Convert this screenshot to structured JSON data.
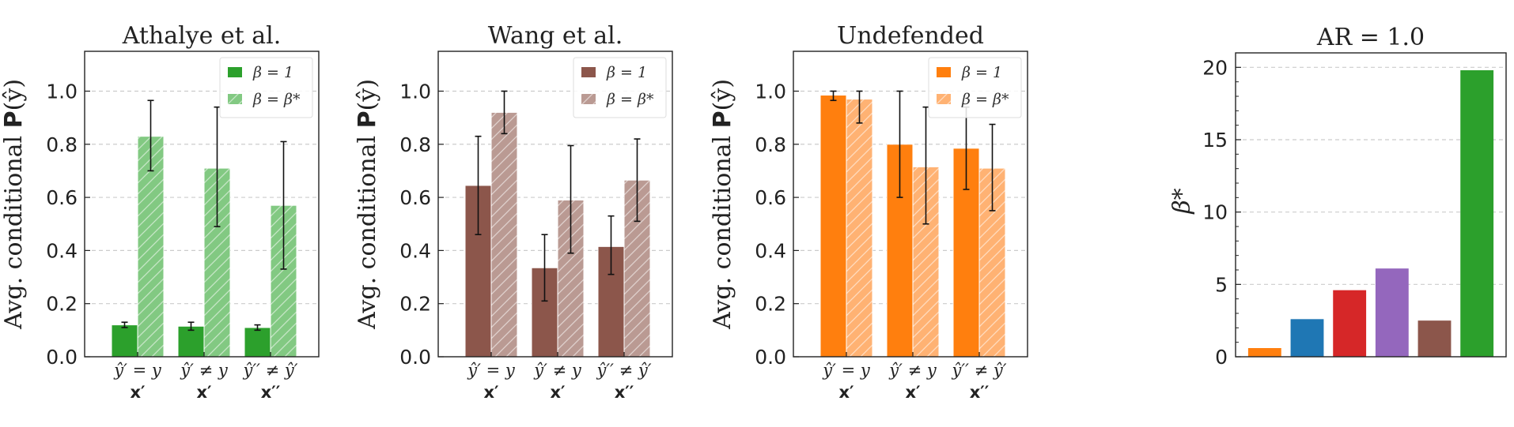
{
  "chart_data": [
    {
      "type": "bar",
      "title": "Athalye et al.",
      "ylabel": "Avg. conditional P(ŷ)",
      "ylim": [
        0,
        1.15
      ],
      "yticks": [
        "0.0",
        "0.2",
        "0.4",
        "0.6",
        "0.8",
        "1.0"
      ],
      "grid": "horizontal dashed",
      "legend_position": "top-right",
      "categories": [
        {
          "top": "ŷ′ = y",
          "bottom": "x′"
        },
        {
          "top": "ŷ′ ≠ y",
          "bottom": "x′"
        },
        {
          "top": "ŷ′′ ≠ ŷ′",
          "bottom": "x′′"
        }
      ],
      "series": [
        {
          "name": "β = 1",
          "color": "#2ca02c",
          "hatch": false,
          "values": [
            0.12,
            0.115,
            0.11
          ],
          "err_low": [
            0.11,
            0.1,
            0.1
          ],
          "err_high": [
            0.13,
            0.13,
            0.12
          ]
        },
        {
          "name": "β = β*",
          "color": "#82c982",
          "hatch": true,
          "values": [
            0.83,
            0.71,
            0.57
          ],
          "err_low": [
            0.7,
            0.49,
            0.33
          ],
          "err_high": [
            0.965,
            0.94,
            0.81
          ]
        }
      ]
    },
    {
      "type": "bar",
      "title": "Wang et al.",
      "ylabel": "Avg. conditional P(ŷ)",
      "ylim": [
        0,
        1.15
      ],
      "yticks": [
        "0.0",
        "0.2",
        "0.4",
        "0.6",
        "0.8",
        "1.0"
      ],
      "grid": "horizontal dashed",
      "legend_position": "top-right",
      "categories": [
        {
          "top": "ŷ′ = y",
          "bottom": "x′"
        },
        {
          "top": "ŷ′ ≠ y",
          "bottom": "x′"
        },
        {
          "top": "ŷ′′ ≠ ŷ′",
          "bottom": "x′′"
        }
      ],
      "series": [
        {
          "name": "β = 1",
          "color": "#8c564b",
          "hatch": false,
          "values": [
            0.645,
            0.335,
            0.415
          ],
          "err_low": [
            0.46,
            0.21,
            0.31
          ],
          "err_high": [
            0.83,
            0.46,
            0.53
          ]
        },
        {
          "name": "β = β*",
          "color": "#ba9a93",
          "hatch": true,
          "values": [
            0.92,
            0.59,
            0.665
          ],
          "err_low": [
            0.84,
            0.39,
            0.51
          ],
          "err_high": [
            1.0,
            0.795,
            0.82
          ]
        }
      ]
    },
    {
      "type": "bar",
      "title": "Undefended",
      "ylabel": "Avg. conditional P(ŷ)",
      "ylim": [
        0,
        1.15
      ],
      "yticks": [
        "0.0",
        "0.2",
        "0.4",
        "0.6",
        "0.8",
        "1.0"
      ],
      "grid": "horizontal dashed",
      "legend_position": "top-right",
      "categories": [
        {
          "top": "ŷ′ = y",
          "bottom": "x′"
        },
        {
          "top": "ŷ′ ≠ y",
          "bottom": "x′"
        },
        {
          "top": "ŷ′′ ≠ ŷ′",
          "bottom": "x′′"
        }
      ],
      "series": [
        {
          "name": "β = 1",
          "color": "#ff7f0e",
          "hatch": false,
          "values": [
            0.985,
            0.8,
            0.785
          ],
          "err_low": [
            0.965,
            0.6,
            0.63
          ],
          "err_high": [
            1.0,
            1.0,
            0.94
          ]
        },
        {
          "name": "β = β*",
          "color": "#ffb273",
          "hatch": true,
          "values": [
            0.97,
            0.715,
            0.71
          ],
          "err_low": [
            0.88,
            0.5,
            0.55
          ],
          "err_high": [
            1.0,
            0.94,
            0.875
          ]
        }
      ]
    },
    {
      "type": "bar",
      "title": "AR = 1.0",
      "ylabel": "β*",
      "ylim": [
        0,
        21
      ],
      "yticks": [
        "0",
        "5",
        "10",
        "15",
        "20"
      ],
      "grid": "horizontal dashed",
      "values": [
        0.6,
        2.6,
        4.6,
        6.1,
        2.5,
        19.8
      ],
      "colors": [
        "#ff7f0e",
        "#1f77b4",
        "#d62728",
        "#9467bd",
        "#8c564b",
        "#2ca02c"
      ]
    }
  ]
}
